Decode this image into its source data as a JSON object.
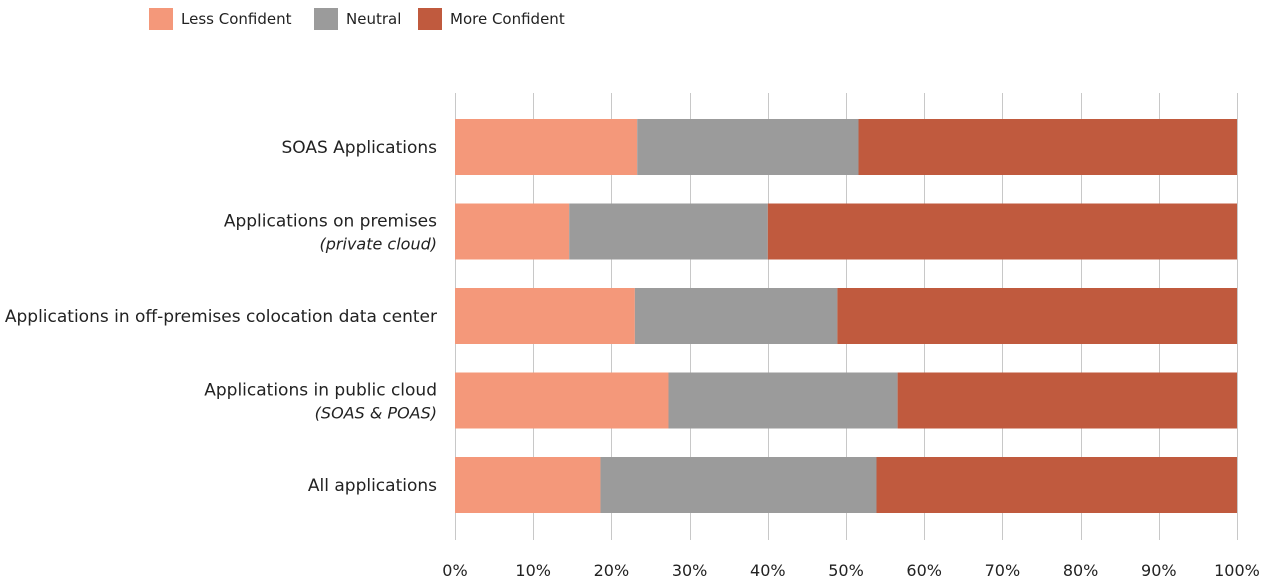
{
  "chart_data": {
    "type": "bar",
    "orientation": "horizontal",
    "stacked": true,
    "categories": [
      {
        "label": "SOAS Applications",
        "sublabel": ""
      },
      {
        "label": "Applications on premises",
        "sublabel": "(private cloud)"
      },
      {
        "label": "Applications in off-premises colocation data center",
        "sublabel": ""
      },
      {
        "label": "Applications in public cloud",
        "sublabel": "(SOAS & POAS)"
      },
      {
        "label": "All applications",
        "sublabel": ""
      }
    ],
    "series": [
      {
        "name": "Less Confident",
        "color": "#f4987a",
        "values": [
          23.3,
          14.6,
          23.0,
          27.3,
          18.6
        ]
      },
      {
        "name": "Neutral",
        "color": "#9b9b9b",
        "values": [
          28.3,
          25.4,
          25.9,
          29.3,
          35.3
        ]
      },
      {
        "name": "More Confident",
        "color": "#c05a3e",
        "values": [
          48.4,
          60.0,
          51.1,
          43.4,
          46.1
        ]
      }
    ],
    "xlim": [
      0,
      100
    ],
    "ticks": [
      "0%",
      "10%",
      "20%",
      "30%",
      "40%",
      "50%",
      "60%",
      "70%",
      "80%",
      "90%",
      "100%"
    ],
    "grid": "vertical",
    "legend_position": "top-left",
    "gridline_color": "#c8c8c8"
  }
}
